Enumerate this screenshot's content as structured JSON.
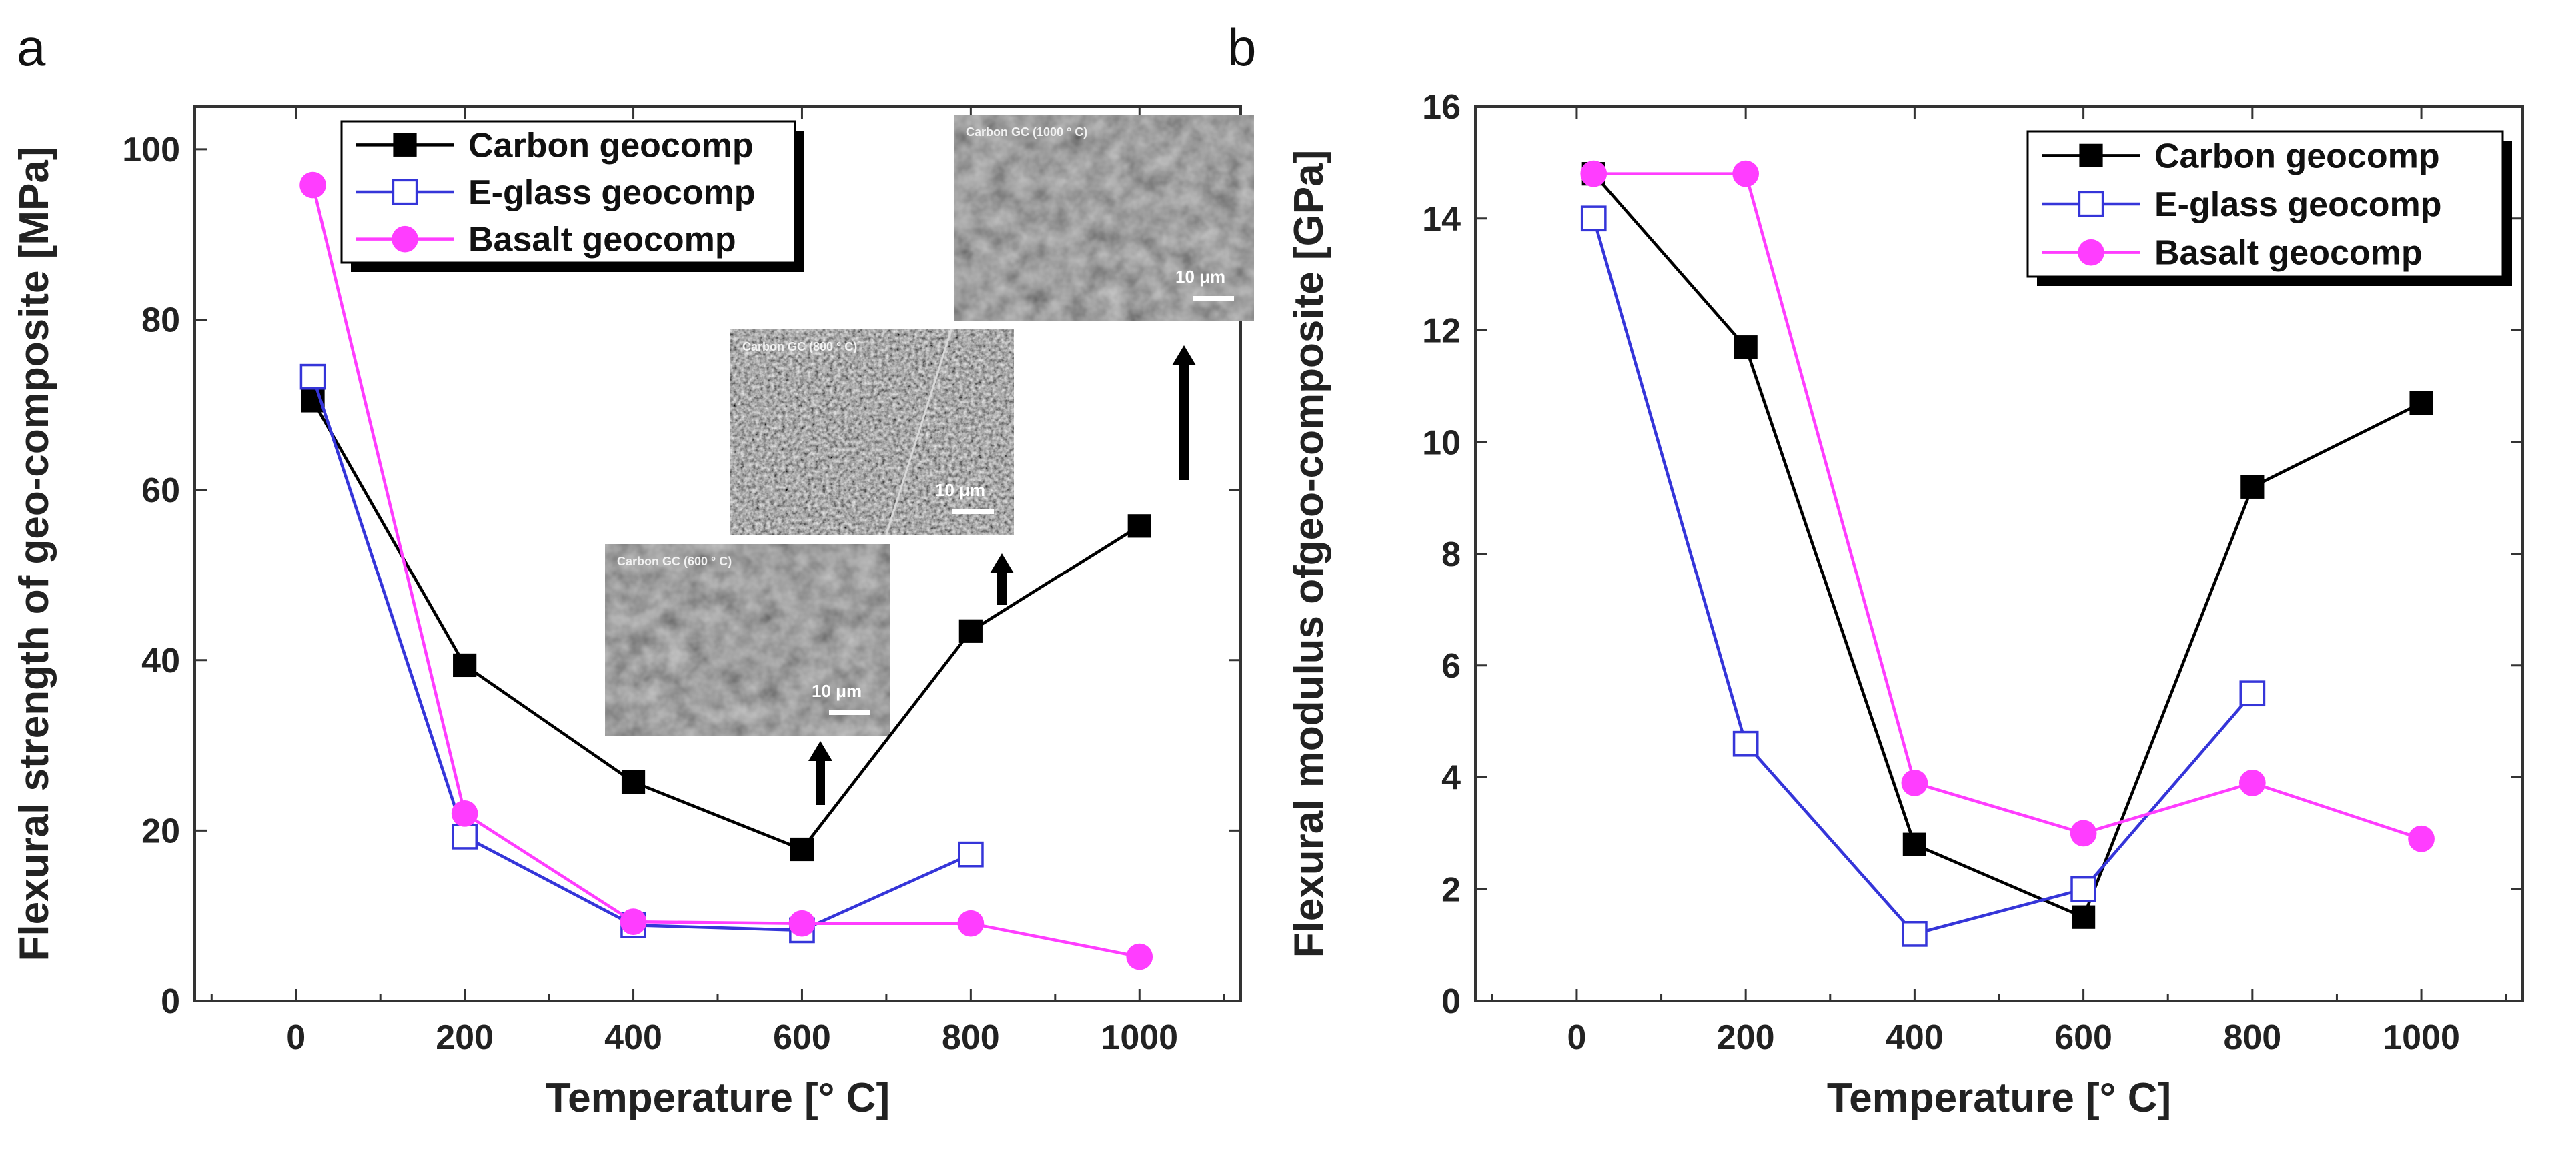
{
  "chart_data": [
    {
      "panel": "a",
      "type": "line",
      "xlabel": "Temperature [° C]",
      "ylabel": "Flexural strength of geo-composite [MPa]",
      "xlim": [
        -120,
        1120
      ],
      "ylim": [
        0,
        105
      ],
      "xticks": [
        0,
        200,
        400,
        600,
        800,
        1000
      ],
      "yticks": [
        0,
        20,
        40,
        60,
        80,
        100
      ],
      "legend_position": "top-left",
      "series": [
        {
          "name": "Carbon geocomp",
          "color": "#000000",
          "marker": "filled-square",
          "x": [
            20,
            200,
            400,
            600,
            800,
            1000
          ],
          "y": [
            70.5,
            39.4,
            25.7,
            17.8,
            43.4,
            55.8
          ]
        },
        {
          "name": "E-glass geocomp",
          "color": "#3535d9",
          "marker": "open-square",
          "x": [
            20,
            200,
            400,
            600,
            800
          ],
          "y": [
            73.3,
            19.3,
            8.9,
            8.3,
            17.2
          ]
        },
        {
          "name": "Basalt geocomp",
          "color": "#ff3dff",
          "marker": "filled-circle",
          "x": [
            20,
            200,
            400,
            600,
            800,
            1000
          ],
          "y": [
            95.8,
            22.0,
            9.3,
            9.1,
            9.1,
            5.2
          ]
        }
      ],
      "insets": [
        {
          "label": "Carbon GC (600 ° C)",
          "scale": "10 μm",
          "texture": "smooth"
        },
        {
          "label": "Carbon GC (800 ° C)",
          "scale": "10 μm",
          "texture": "grainy"
        },
        {
          "label": "Carbon GC (1000 ° C)",
          "scale": "10 μm",
          "texture": "smooth"
        }
      ]
    },
    {
      "panel": "b",
      "type": "line",
      "xlabel": "Temperature [° C]",
      "ylabel": "Flexural modulus ofgeo-composite [GPa]",
      "xlim": [
        -120,
        1120
      ],
      "ylim": [
        0,
        16
      ],
      "xticks": [
        0,
        200,
        400,
        600,
        800,
        1000
      ],
      "yticks": [
        0,
        2,
        4,
        6,
        8,
        10,
        12,
        14,
        16
      ],
      "legend_position": "top-right",
      "series": [
        {
          "name": "Carbon geocomp",
          "color": "#000000",
          "marker": "filled-square",
          "x": [
            20,
            200,
            400,
            600,
            800,
            1000
          ],
          "y": [
            14.8,
            11.7,
            2.8,
            1.5,
            9.2,
            10.7
          ]
        },
        {
          "name": "E-glass geocomp",
          "color": "#3535d9",
          "marker": "open-square",
          "x": [
            20,
            200,
            400,
            600,
            800
          ],
          "y": [
            14.0,
            4.6,
            1.2,
            2.0,
            5.5
          ]
        },
        {
          "name": "Basalt geocomp",
          "color": "#ff3dff",
          "marker": "filled-circle",
          "x": [
            20,
            200,
            400,
            600,
            800,
            1000
          ],
          "y": [
            14.8,
            14.8,
            3.9,
            3.0,
            3.9,
            2.9
          ]
        }
      ]
    }
  ]
}
